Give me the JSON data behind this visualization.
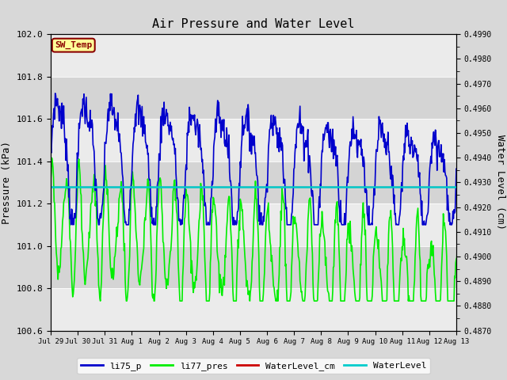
{
  "title": "Air Pressure and Water Level",
  "ylabel_left": "Pressure (kPa)",
  "ylabel_right": "Water Level (cm)",
  "ylim_left": [
    100.6,
    102.0
  ],
  "ylim_right": [
    0.487,
    0.499
  ],
  "yticks_left": [
    100.6,
    100.8,
    101.0,
    101.2,
    101.4,
    101.6,
    101.8,
    102.0
  ],
  "yticks_right": [
    0.487,
    0.488,
    0.489,
    0.49,
    0.491,
    0.492,
    0.493,
    0.494,
    0.495,
    0.496,
    0.497,
    0.498,
    0.499
  ],
  "background_color": "#d8d8d8",
  "plot_bg_color": "#e0e0e0",
  "band_light": "#ebebeb",
  "band_dark": "#d4d4d4",
  "sw_temp_box_color": "#ffff99",
  "sw_temp_box_edge": "#8B0000",
  "sw_temp_text": "SW_Temp",
  "water_level_constant": 101.28,
  "li75_color": "#0000cc",
  "li77_color": "#00ee00",
  "water_level_cm_color": "#cc0000",
  "water_level_color": "#00cccc",
  "li75_lw": 1.2,
  "li77_lw": 1.2,
  "water_level_lw": 1.8,
  "legend_labels": [
    "li75_p",
    "li77_pres",
    "WaterLevel_cm",
    "WaterLevel"
  ],
  "legend_colors": [
    "#0000cc",
    "#00ee00",
    "#cc0000",
    "#00cccc"
  ],
  "xtick_labels": [
    "Jul 29",
    "Jul 30",
    "Jul 31",
    "Aug 1",
    "Aug 2",
    "Aug 3",
    "Aug 4",
    "Aug 5",
    "Aug 6",
    "Aug 7",
    "Aug 8",
    "Aug 9",
    "Aug 10",
    "Aug 11",
    "Aug 12",
    "Aug 13"
  ],
  "n_days": 16,
  "pts_per_day": 48
}
